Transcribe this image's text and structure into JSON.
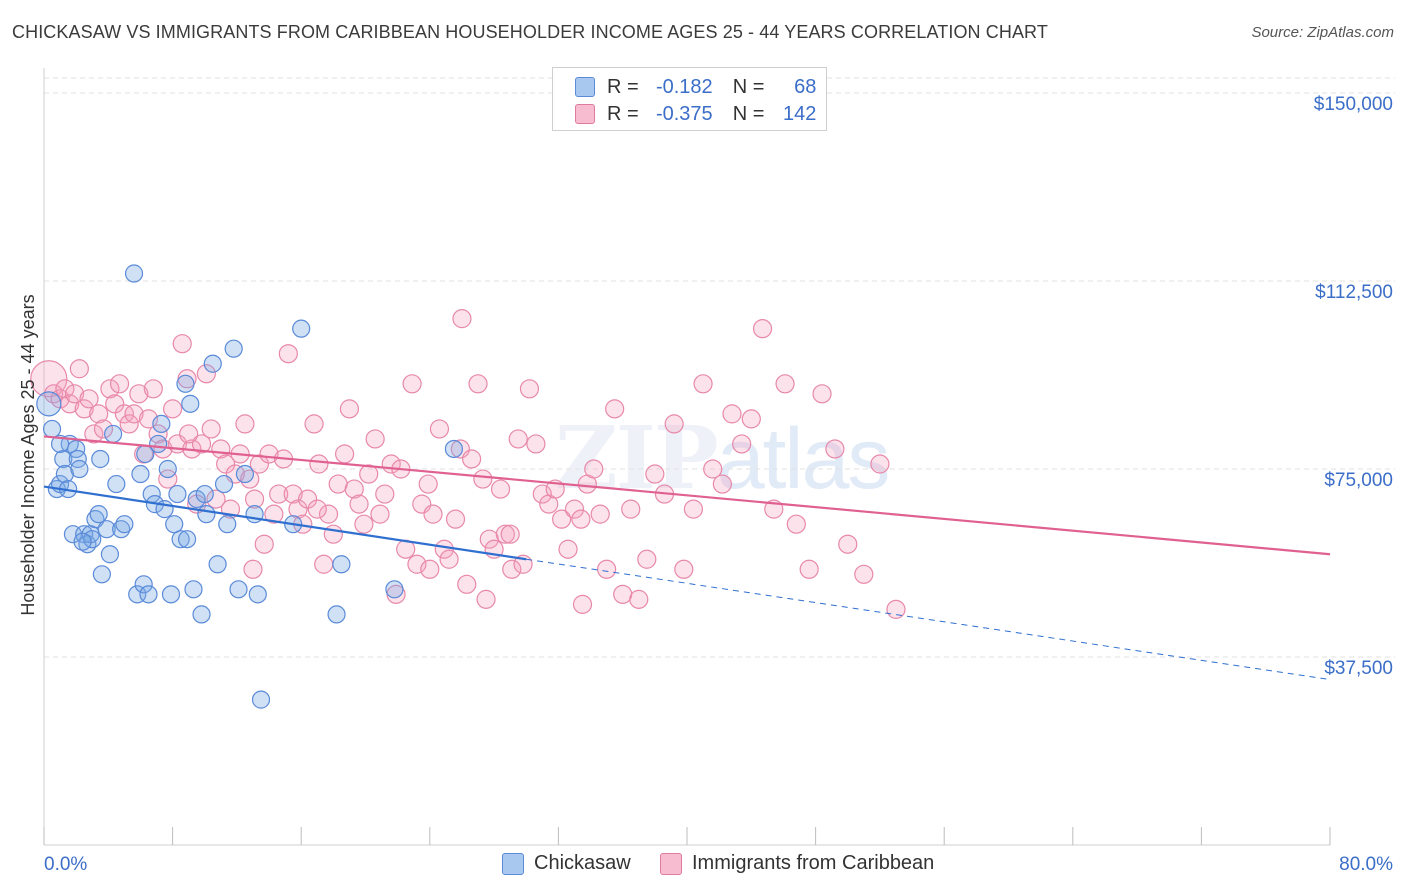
{
  "header": {
    "title": "CHICKASAW VS IMMIGRANTS FROM CARIBBEAN HOUSEHOLDER INCOME AGES 25 - 44 YEARS CORRELATION CHART",
    "source": "Source: ZipAtlas.com"
  },
  "watermark": {
    "main": "ZIP",
    "sub": "atlas"
  },
  "legend": {
    "rows": [
      {
        "r_label": "R =",
        "r_value": "-0.182",
        "n_label": "N =",
        "n_value": "68",
        "color": "#a8c8f0",
        "border": "#5a8ad8"
      },
      {
        "r_label": "R =",
        "r_value": "-0.375",
        "n_label": "N =",
        "n_value": "142",
        "color": "#f8bcd0",
        "border": "#e07aa0"
      }
    ]
  },
  "bottom_legend": {
    "items": [
      {
        "label": "Chickasaw"
      },
      {
        "label": "Immigrants from Caribbean"
      }
    ]
  },
  "colors": {
    "blue_fill": "rgba(120,170,230,0.35)",
    "blue_stroke": "#5a8ad8",
    "blue_line": "#2f6fd0",
    "pink_fill": "rgba(245,160,190,0.30)",
    "pink_stroke": "#e888aa",
    "pink_line": "#e06090",
    "grid": "#e2e2e2",
    "tick_text": "#3b6ec8"
  },
  "chart_data": {
    "type": "scatter",
    "title": "CHICKASAW VS IMMIGRANTS FROM CARIBBEAN HOUSEHOLDER INCOME AGES 25 - 44 YEARS CORRELATION CHART",
    "xlabel": "",
    "ylabel": "Householder Income Ages 25 - 44 years",
    "xlim": [
      0,
      80
    ],
    "ylim": [
      0,
      153000
    ],
    "x_tick_labels": [
      "0.0%",
      "80.0%"
    ],
    "y_ticks": [
      37500,
      75000,
      112500,
      150000
    ],
    "y_tick_labels": [
      "$37,500",
      "$75,000",
      "$112,500",
      "$150,000"
    ],
    "grid": true,
    "legend_position": "top-center",
    "series": [
      {
        "name": "Chickasaw",
        "R": -0.182,
        "N": 68,
        "trend": {
          "x_start": 0,
          "y_start": 71500,
          "x_end": 30,
          "y_end": 57000,
          "dashed_x_end": 80,
          "dashed_y_end": 33000
        },
        "points": [
          [
            0.3,
            88000
          ],
          [
            0.5,
            83000
          ],
          [
            0.8,
            71000
          ],
          [
            1.0,
            72000
          ],
          [
            1.2,
            77000
          ],
          [
            1.3,
            74000
          ],
          [
            1.5,
            71000
          ],
          [
            1.6,
            80000
          ],
          [
            1.8,
            62000
          ],
          [
            2.0,
            79000
          ],
          [
            2.1,
            77000
          ],
          [
            2.2,
            75000
          ],
          [
            2.5,
            62000
          ],
          [
            2.7,
            60000
          ],
          [
            2.9,
            62000
          ],
          [
            3.0,
            61000
          ],
          [
            3.2,
            65000
          ],
          [
            3.4,
            66000
          ],
          [
            3.5,
            77000
          ],
          [
            3.6,
            54000
          ],
          [
            3.9,
            63000
          ],
          [
            4.1,
            58000
          ],
          [
            4.3,
            82000
          ],
          [
            4.5,
            72000
          ],
          [
            4.8,
            63000
          ],
          [
            5.0,
            64000
          ],
          [
            5.6,
            114000
          ],
          [
            5.8,
            50000
          ],
          [
            6.0,
            74000
          ],
          [
            6.2,
            52000
          ],
          [
            6.5,
            50000
          ],
          [
            6.7,
            70000
          ],
          [
            6.9,
            68000
          ],
          [
            7.1,
            80000
          ],
          [
            7.3,
            84000
          ],
          [
            7.5,
            67000
          ],
          [
            7.7,
            75000
          ],
          [
            7.9,
            50000
          ],
          [
            8.1,
            64000
          ],
          [
            8.3,
            70000
          ],
          [
            8.5,
            61000
          ],
          [
            8.8,
            92000
          ],
          [
            8.9,
            61000
          ],
          [
            9.1,
            88000
          ],
          [
            9.3,
            51000
          ],
          [
            9.5,
            69000
          ],
          [
            9.8,
            46000
          ],
          [
            10.1,
            66000
          ],
          [
            10.5,
            96000
          ],
          [
            10.8,
            56000
          ],
          [
            11.2,
            72000
          ],
          [
            11.4,
            64000
          ],
          [
            11.8,
            99000
          ],
          [
            12.1,
            51000
          ],
          [
            12.5,
            74000
          ],
          [
            13.1,
            66000
          ],
          [
            13.3,
            50000
          ],
          [
            13.5,
            29000
          ],
          [
            15.5,
            64000
          ],
          [
            16.0,
            103000
          ],
          [
            18.2,
            46000
          ],
          [
            18.5,
            56000
          ],
          [
            21.8,
            51000
          ],
          [
            25.5,
            79000
          ],
          [
            1.0,
            80000
          ],
          [
            2.4,
            60500
          ],
          [
            6.3,
            78000
          ],
          [
            10.0,
            70000
          ]
        ]
      },
      {
        "name": "Immigrants from Caribbean",
        "R": -0.375,
        "N": 142,
        "trend": {
          "x_start": 0,
          "y_start": 81500,
          "x_end": 80,
          "y_end": 58000
        },
        "points": [
          [
            0.3,
            93000
          ],
          [
            0.6,
            90000
          ],
          [
            1.0,
            89000
          ],
          [
            1.3,
            91000
          ],
          [
            1.6,
            88000
          ],
          [
            1.9,
            90000
          ],
          [
            2.2,
            95000
          ],
          [
            2.5,
            87000
          ],
          [
            2.8,
            89000
          ],
          [
            3.1,
            82000
          ],
          [
            3.4,
            86000
          ],
          [
            3.7,
            83000
          ],
          [
            4.1,
            91000
          ],
          [
            4.4,
            88000
          ],
          [
            4.7,
            92000
          ],
          [
            5.0,
            86000
          ],
          [
            5.3,
            84000
          ],
          [
            5.6,
            86000
          ],
          [
            5.9,
            90000
          ],
          [
            6.2,
            78000
          ],
          [
            6.5,
            85000
          ],
          [
            6.8,
            91000
          ],
          [
            7.1,
            82000
          ],
          [
            7.4,
            79000
          ],
          [
            7.7,
            73000
          ],
          [
            8.0,
            87000
          ],
          [
            8.3,
            80000
          ],
          [
            8.6,
            100000
          ],
          [
            8.9,
            93000
          ],
          [
            9.2,
            79000
          ],
          [
            9.5,
            68000
          ],
          [
            9.8,
            80000
          ],
          [
            10.1,
            94000
          ],
          [
            10.4,
            83000
          ],
          [
            10.7,
            69000
          ],
          [
            11.0,
            79000
          ],
          [
            11.3,
            76000
          ],
          [
            11.6,
            67000
          ],
          [
            11.9,
            74000
          ],
          [
            12.2,
            78000
          ],
          [
            12.5,
            84000
          ],
          [
            12.8,
            73000
          ],
          [
            13.1,
            69000
          ],
          [
            13.4,
            76000
          ],
          [
            13.7,
            60000
          ],
          [
            14.0,
            78000
          ],
          [
            14.3,
            66000
          ],
          [
            14.6,
            70000
          ],
          [
            14.9,
            77000
          ],
          [
            15.2,
            98000
          ],
          [
            15.5,
            70000
          ],
          [
            15.8,
            67000
          ],
          [
            16.1,
            64000
          ],
          [
            16.4,
            69000
          ],
          [
            16.8,
            84000
          ],
          [
            17.1,
            76000
          ],
          [
            17.4,
            56000
          ],
          [
            17.7,
            66000
          ],
          [
            18.0,
            62000
          ],
          [
            18.3,
            72000
          ],
          [
            18.7,
            78000
          ],
          [
            19.0,
            87000
          ],
          [
            19.3,
            71000
          ],
          [
            19.6,
            68000
          ],
          [
            19.9,
            64000
          ],
          [
            20.2,
            74000
          ],
          [
            20.6,
            81000
          ],
          [
            20.9,
            66000
          ],
          [
            21.2,
            70000
          ],
          [
            21.6,
            76000
          ],
          [
            21.9,
            50000
          ],
          [
            22.2,
            75000
          ],
          [
            22.5,
            59000
          ],
          [
            22.9,
            92000
          ],
          [
            23.2,
            56000
          ],
          [
            23.5,
            68000
          ],
          [
            23.9,
            72000
          ],
          [
            24.2,
            66000
          ],
          [
            24.6,
            83000
          ],
          [
            24.9,
            59000
          ],
          [
            25.2,
            57000
          ],
          [
            25.6,
            65000
          ],
          [
            25.9,
            79000
          ],
          [
            26.3,
            52000
          ],
          [
            26.6,
            77000
          ],
          [
            27.0,
            92000
          ],
          [
            27.3,
            73000
          ],
          [
            27.7,
            61000
          ],
          [
            28.0,
            59000
          ],
          [
            28.4,
            71000
          ],
          [
            28.7,
            62000
          ],
          [
            29.1,
            55000
          ],
          [
            29.5,
            81000
          ],
          [
            29.8,
            56000
          ],
          [
            30.2,
            91000
          ],
          [
            30.6,
            80000
          ],
          [
            31.0,
            70000
          ],
          [
            31.4,
            68000
          ],
          [
            31.8,
            71000
          ],
          [
            32.2,
            65000
          ],
          [
            32.6,
            59000
          ],
          [
            33.0,
            67000
          ],
          [
            33.4,
            65000
          ],
          [
            33.8,
            72000
          ],
          [
            34.2,
            75000
          ],
          [
            34.6,
            66000
          ],
          [
            35.0,
            55000
          ],
          [
            35.5,
            87000
          ],
          [
            36.0,
            50000
          ],
          [
            36.5,
            67000
          ],
          [
            37.0,
            49000
          ],
          [
            37.5,
            57000
          ],
          [
            38.0,
            74000
          ],
          [
            38.6,
            70000
          ],
          [
            39.2,
            84000
          ],
          [
            39.8,
            55000
          ],
          [
            40.4,
            67000
          ],
          [
            41.0,
            92000
          ],
          [
            41.6,
            75000
          ],
          [
            42.2,
            72000
          ],
          [
            42.8,
            86000
          ],
          [
            43.4,
            80000
          ],
          [
            44.0,
            85000
          ],
          [
            44.7,
            103000
          ],
          [
            45.4,
            67000
          ],
          [
            46.1,
            92000
          ],
          [
            46.8,
            64000
          ],
          [
            47.6,
            55000
          ],
          [
            48.4,
            90000
          ],
          [
            49.2,
            79000
          ],
          [
            50.0,
            60000
          ],
          [
            51.0,
            54000
          ],
          [
            52.0,
            76000
          ],
          [
            53.0,
            47000
          ],
          [
            26.0,
            105000
          ],
          [
            27.5,
            49000
          ],
          [
            29.0,
            62000
          ],
          [
            33.5,
            48000
          ],
          [
            17.0,
            67000
          ],
          [
            9.0,
            82000
          ],
          [
            13.0,
            55000
          ],
          [
            24.0,
            55000
          ]
        ]
      }
    ]
  }
}
